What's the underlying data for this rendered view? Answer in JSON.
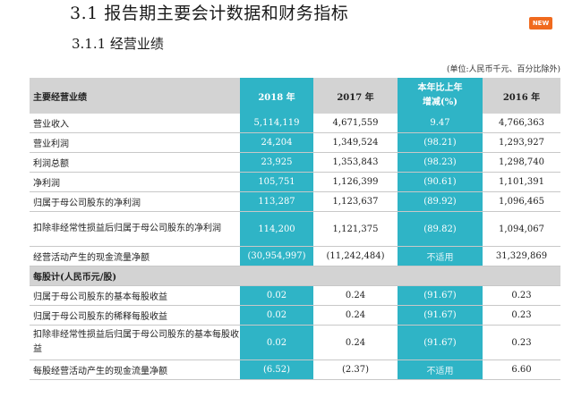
{
  "section_title": "3.1  报告期主要会计数据和财务指标",
  "subsection_title": "3.1.1 经营业绩",
  "badge": "NEW",
  "unit_note": "(单位:人民币千元、百分比除外)",
  "header": {
    "label": "主要经营业绩",
    "y2018": "2018 年",
    "y2017": "2017 年",
    "change_line1": "本年比上年",
    "change_line2": "增减(%)",
    "y2016": "2016 年"
  },
  "rows": [
    {
      "label": "营业收入",
      "v2018": "5,114,119",
      "v2017": "4,671,559",
      "chg": "9.47",
      "v2016": "4,766,363"
    },
    {
      "label": "营业利润",
      "v2018": "24,204",
      "v2017": "1,349,524",
      "chg": "(98.21)",
      "v2016": "1,293,927"
    },
    {
      "label": "利润总额",
      "v2018": "23,925",
      "v2017": "1,353,843",
      "chg": "(98.23)",
      "v2016": "1,298,740"
    },
    {
      "label": "净利润",
      "v2018": "105,751",
      "v2017": "1,126,399",
      "chg": "(90.61)",
      "v2016": "1,101,391"
    },
    {
      "label": "归属于母公司股东的净利润",
      "v2018": "113,287",
      "v2017": "1,123,637",
      "chg": "(89.92)",
      "v2016": "1,096,465"
    },
    {
      "label": "扣除非经常性损益后归属于母公司股东的净利润",
      "v2018": "114,200",
      "v2017": "1,121,375",
      "chg": "(89.82)",
      "v2016": "1,094,067"
    },
    {
      "label": "经营活动产生的现金流量净额",
      "v2018": "(30,954,997)",
      "v2017": "(11,242,484)",
      "chg": "不适用",
      "v2016": "31,329,869"
    }
  ],
  "eps_section": "每股计(人民币元/股)",
  "eps_rows": [
    {
      "label": "归属于母公司股东的基本每股收益",
      "v2018": "0.02",
      "v2017": "0.24",
      "chg": "(91.67)",
      "v2016": "0.23"
    },
    {
      "label": "归属于母公司股东的稀释每股收益",
      "v2018": "0.02",
      "v2017": "0.24",
      "chg": "(91.67)",
      "v2016": "0.23"
    },
    {
      "label": "扣除非经常性损益后归属于母公司股东的基本每股收益",
      "v2018": "0.02",
      "v2017": "0.24",
      "chg": "(91.67)",
      "v2016": "0.23"
    },
    {
      "label": "每股经营活动产生的现金流量净额",
      "v2018": "(6.52)",
      "v2017": "(2.37)",
      "chg": "不适用",
      "v2016": "6.60"
    }
  ]
}
